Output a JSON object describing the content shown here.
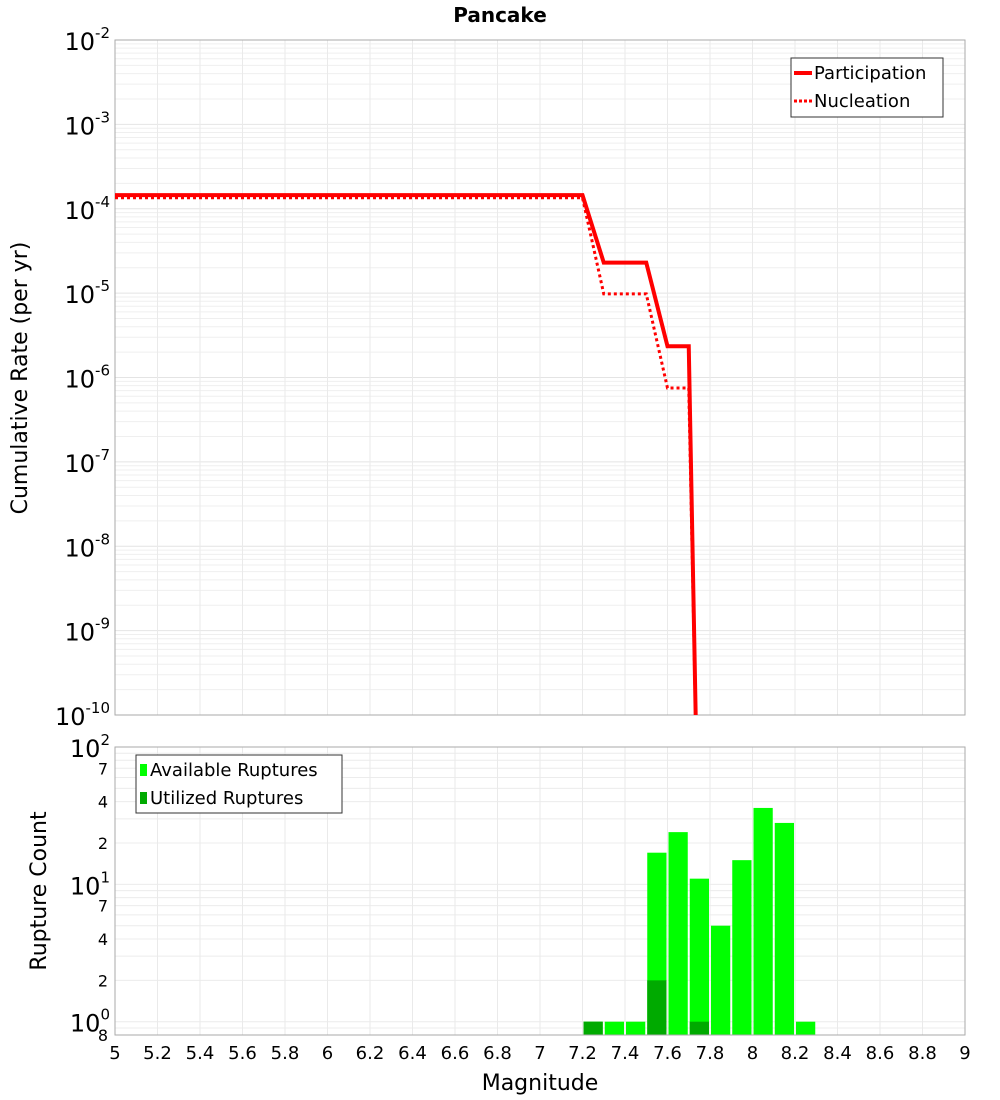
{
  "chart_data": [
    {
      "type": "line",
      "title": "Pancake",
      "xlabel": "",
      "ylabel": "Cumulative Rate (per yr)",
      "xlim": [
        5,
        9
      ],
      "ylim": [
        1e-10,
        0.01
      ],
      "yscale": "log",
      "grid": true,
      "legend": "top-right",
      "y_ticks": [
        "-2",
        "-3",
        "-4",
        "-5",
        "-6",
        "-7",
        "-8",
        "-9",
        "-10"
      ],
      "series": [
        {
          "name": "Participation",
          "style": "solid",
          "color": "#ff0000",
          "x": [
            5,
            7.2,
            7.3,
            7.5,
            7.6,
            7.7,
            7.74
          ],
          "y": [
            0.000145,
            0.000145,
            2.3e-05,
            2.3e-05,
            2.35e-06,
            2.35e-06,
            1e-11
          ]
        },
        {
          "name": "Nucleation",
          "style": "dotted",
          "color": "#ff0000",
          "x": [
            5,
            7.2,
            7.3,
            7.5,
            7.6,
            7.7,
            7.74
          ],
          "y": [
            0.000135,
            0.000135,
            9.8e-06,
            9.8e-06,
            7.5e-07,
            7.5e-07,
            1e-11
          ]
        }
      ]
    },
    {
      "type": "bar",
      "xlabel": "Magnitude",
      "ylabel": "Rupture Count",
      "xlim": [
        5,
        9
      ],
      "ylim": [
        0.8,
        100
      ],
      "yscale": "log",
      "grid": true,
      "legend": "top-left",
      "x_ticks": [
        "5",
        "5.2",
        "5.4",
        "5.6",
        "5.8",
        "6",
        "6.2",
        "6.4",
        "6.6",
        "6.8",
        "7",
        "7.2",
        "7.4",
        "7.6",
        "7.8",
        "8",
        "8.2",
        "8.4",
        "8.6",
        "8.8",
        "9"
      ],
      "y_ticks": [
        {
          "v": 100,
          "base": "10",
          "exp": "2"
        },
        {
          "v": 70,
          "label": "7"
        },
        {
          "v": 40,
          "label": "4"
        },
        {
          "v": 20,
          "label": "2"
        },
        {
          "v": 10,
          "base": "10",
          "exp": "1"
        },
        {
          "v": 7,
          "label": "7"
        },
        {
          "v": 4,
          "label": "4"
        },
        {
          "v": 2,
          "label": "2"
        },
        {
          "v": 1,
          "base": "10",
          "exp": "0"
        },
        {
          "v": 0.8,
          "label": "8"
        }
      ],
      "bin_width": 0.1,
      "series": [
        {
          "name": "Available Ruptures",
          "color": "#00ff00",
          "x": [
            7.25,
            7.35,
            7.45,
            7.55,
            7.65,
            7.75,
            7.85,
            7.95,
            8.05,
            8.15,
            8.25
          ],
          "values": [
            1,
            1,
            1,
            17,
            24,
            11,
            5,
            15,
            36,
            28,
            1
          ]
        },
        {
          "name": "Utilized Ruptures",
          "color": "#00aa00",
          "x": [
            7.25,
            7.55,
            7.75
          ],
          "values": [
            1,
            2,
            1
          ]
        }
      ]
    }
  ]
}
